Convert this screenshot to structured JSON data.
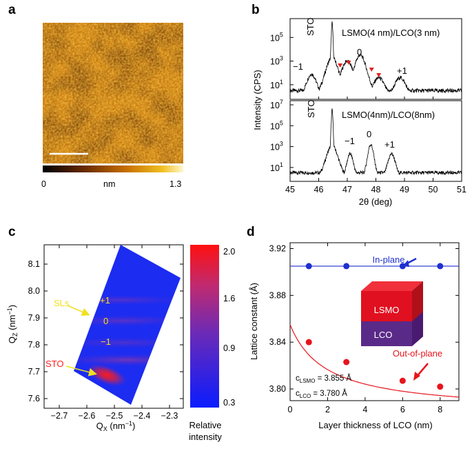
{
  "panels": {
    "a": {
      "letter": "a",
      "colorbar": {
        "min_label": "0",
        "unit_label": "nm",
        "max_label": "1.3"
      }
    },
    "b": {
      "letter": "b",
      "ylabel": "Intensity (CPS)",
      "xlabel": "2θ (deg)",
      "x_ticks": [
        "45",
        "46",
        "47",
        "48",
        "49",
        "50",
        "51"
      ],
      "top": {
        "title": "LSMO(4 nm)/LCO(3 nm)",
        "sto_label": "STO",
        "peak_labels": [
          "−1",
          "0",
          "+1"
        ],
        "y_ticks": [
          "10^5",
          "10^3",
          "10^1"
        ]
      },
      "bottom": {
        "title": "LSMO(4nm)/LCO(8nm)",
        "sto_label": "STO",
        "peak_labels": [
          "−1",
          "0",
          "+1"
        ],
        "y_ticks": [
          "10^7",
          "10^5",
          "10^3",
          "10^1"
        ]
      }
    },
    "c": {
      "letter": "c",
      "ylabel_main": "Q",
      "ylabel_sub": "Z",
      "ylabel_unit": " (nm",
      "ylabel_exp": "−1",
      "xlabel_main": "Q",
      "xlabel_sub": "X",
      "xlabel_unit": " (nm",
      "xlabel_exp": "−1",
      "y_ticks": [
        "8.1",
        "8.0",
        "7.9",
        "7.8",
        "7.7",
        "7.6"
      ],
      "x_ticks": [
        "−2.7",
        "−2.6",
        "−2.5",
        "−2.4",
        "−2.3"
      ],
      "annotations": {
        "sls": "SLs",
        "sto": "STO",
        "plus1": "+1",
        "zero": "0",
        "minus1": "−1"
      },
      "colorbar": {
        "ticks": [
          "2.0",
          "1.6",
          "0.9",
          "0.3"
        ],
        "label_line1": "Relative",
        "label_line2": "intensity"
      }
    },
    "d": {
      "letter": "d",
      "ylabel": "Lattice constant (Å)",
      "xlabel": "Layer thickness of LCO (nm)",
      "y_ticks": [
        "3.92",
        "3.88",
        "3.84",
        "3.80"
      ],
      "x_ticks": [
        "0",
        "2",
        "4",
        "6",
        "8"
      ],
      "in_plane_label": "In-plane",
      "out_plane_label": "Out-of-plane",
      "cube_top_label": "LSMO",
      "cube_bottom_label": "LCO",
      "c_lsmo_label": "LSMO",
      "c_lsmo_value": " = 3.855 Å",
      "c_lco_label": "LCO",
      "c_lco_value": " = 3.780 Å"
    }
  },
  "chart_data": [
    {
      "type": "line",
      "title": "LSMO(4 nm)/LCO(3 nm)",
      "xlabel": "2θ (deg)",
      "ylabel": "Intensity (CPS)",
      "xlim": [
        45,
        51
      ],
      "y_scale": "log",
      "ylim": [
        1,
        10000000
      ],
      "peaks_deg": {
        "STO": 46.47,
        "-1": 45.75,
        "0": 47.45,
        "+1": 48.85
      },
      "fringe_markers_deg": [
        46.75,
        47.05,
        47.85,
        48.1
      ]
    },
    {
      "type": "line",
      "title": "LSMO(4nm)/LCO(8nm)",
      "xlabel": "2θ (deg)",
      "ylabel": "Intensity (CPS)",
      "xlim": [
        45,
        51
      ],
      "y_scale": "log",
      "ylim": [
        1,
        10000000
      ],
      "peaks_deg": {
        "STO": 46.47,
        "-1": 47.1,
        "0": 47.82,
        "+1": 48.55
      }
    },
    {
      "type": "scatter",
      "title": "",
      "xlabel": "Layer thickness of LCO (nm)",
      "ylabel": "Lattice constant (Å)",
      "xlim": [
        0,
        9
      ],
      "ylim": [
        3.79,
        3.925
      ],
      "series": [
        {
          "name": "In-plane",
          "color": "#1f2fd0",
          "x": [
            1,
            3,
            6,
            8
          ],
          "y": [
            3.905,
            3.905,
            3.905,
            3.905
          ]
        },
        {
          "name": "Out-of-plane",
          "color": "#e8141c",
          "x": [
            1,
            3,
            6,
            8
          ],
          "y": [
            3.84,
            3.823,
            3.807,
            3.802
          ]
        }
      ],
      "fit": {
        "c_LSMO": 3.855,
        "c_LCO": 3.78
      }
    }
  ],
  "colors": {
    "in_plane": "#1f2fd0",
    "out_plane": "#e8141c",
    "arrow_yellow": "#f0e020",
    "cube_red": "#e01020",
    "cube_purple": "#5a2a88"
  }
}
